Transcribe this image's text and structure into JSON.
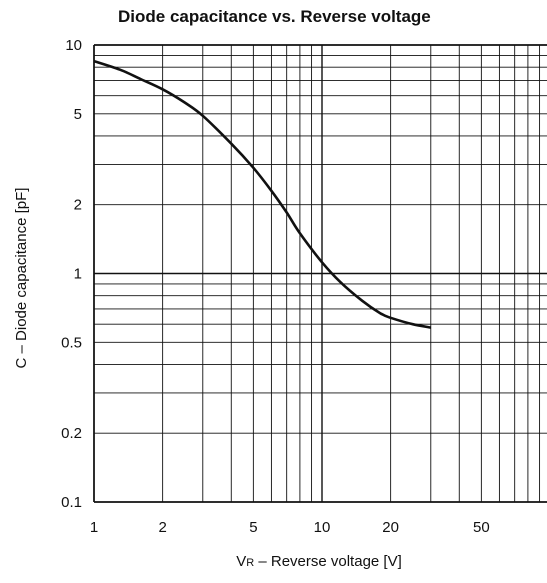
{
  "chart_data": {
    "type": "line",
    "title": "Diode capacitance vs. Reverse voltage",
    "xlabel": {
      "prefix": "V",
      "subscript": "R",
      "text": " – Reverse voltage [V]"
    },
    "ylabel": "C – Diode capacitance [pF]",
    "x_scale": "log",
    "y_scale": "log",
    "xlim": [
      1,
      100
    ],
    "ylim": [
      0.1,
      10
    ],
    "grid": true,
    "x_ticks": [
      1,
      2,
      5,
      10,
      20,
      50
    ],
    "x_tick_labels": [
      "1",
      "2",
      "5",
      "10",
      "20",
      "50"
    ],
    "y_ticks": [
      0.1,
      0.2,
      0.5,
      1,
      2,
      5,
      10
    ],
    "y_tick_labels": [
      "0.1",
      "0.2",
      "0.5",
      "1",
      "2",
      "5",
      "10"
    ],
    "series": [
      {
        "x": [
          1,
          1.3,
          1.6,
          2,
          2.5,
          3,
          4,
          5,
          6,
          7,
          8,
          10,
          12,
          15,
          18,
          20,
          25,
          30
        ],
        "y": [
          8.5,
          7.8,
          7.1,
          6.4,
          5.6,
          4.9,
          3.7,
          2.9,
          2.3,
          1.85,
          1.5,
          1.12,
          0.92,
          0.76,
          0.67,
          0.64,
          0.6,
          0.58
        ]
      }
    ]
  }
}
